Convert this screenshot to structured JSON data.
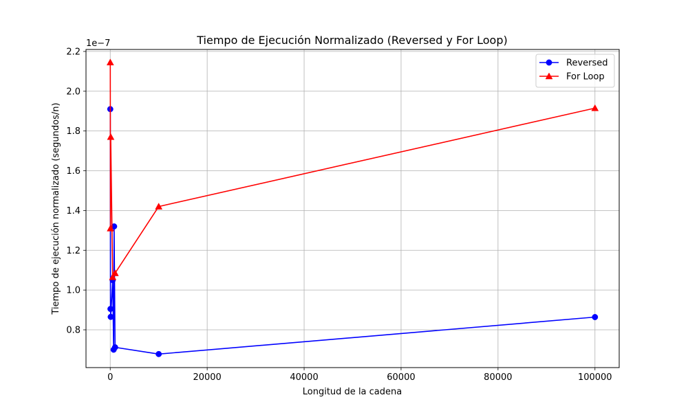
{
  "chart_data": {
    "type": "line",
    "title": "Tiempo de Ejecución Normalizado (Reversed y For Loop)",
    "xlabel": "Longitud de la cadena",
    "ylabel": "Tiempo de ejecución normalizado (segundos/n)",
    "y_offset_label": "1e−7",
    "xlim": [
      -5000,
      105000
    ],
    "ylim": [
      0.61,
      2.21
    ],
    "x_ticks": [
      0,
      20000,
      40000,
      60000,
      80000,
      100000
    ],
    "x_tick_labels": [
      "0",
      "20000",
      "40000",
      "60000",
      "80000",
      "100000"
    ],
    "y_ticks": [
      0.8,
      1.0,
      1.2,
      1.4,
      1.6,
      1.8,
      2.0,
      2.2
    ],
    "y_tick_labels": [
      "0.8",
      "1.0",
      "1.2",
      "1.4",
      "1.6",
      "1.8",
      "2.0",
      "2.2"
    ],
    "grid": true,
    "legend_position": "top-right",
    "series": [
      {
        "name": "Reversed",
        "color": "#0000ff",
        "marker": "circle",
        "points": [
          [
            10,
            1.91
          ],
          [
            50,
            0.905
          ],
          [
            100,
            0.865
          ],
          [
            500,
            1.05
          ],
          [
            700,
            0.7
          ],
          [
            800,
            1.32
          ],
          [
            1000,
            0.712
          ],
          [
            10000,
            0.678
          ],
          [
            100000,
            0.864
          ]
        ]
      },
      {
        "name": "For Loop",
        "color": "#ff0000",
        "marker": "triangle",
        "points": [
          [
            10,
            2.145
          ],
          [
            50,
            1.31
          ],
          [
            100,
            1.77
          ],
          [
            500,
            1.065
          ],
          [
            1000,
            1.085
          ],
          [
            10000,
            1.42
          ],
          [
            100000,
            1.915
          ]
        ]
      }
    ]
  }
}
